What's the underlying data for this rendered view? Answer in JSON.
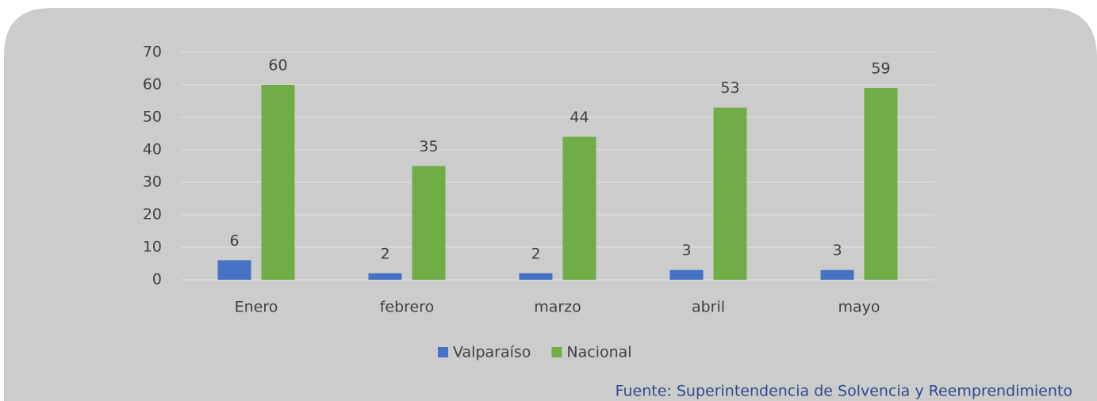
{
  "chart_data": {
    "type": "bar",
    "categories": [
      "Enero",
      "febrero",
      "marzo",
      "abril",
      "mayo"
    ],
    "series": [
      {
        "name": "Valparaíso",
        "color": "#4472c4",
        "values": [
          6,
          2,
          2,
          3,
          3
        ]
      },
      {
        "name": "Nacional",
        "color": "#70ad47",
        "values": [
          60,
          35,
          44,
          53,
          59
        ]
      }
    ],
    "ylim": [
      0,
      70
    ],
    "yticks": [
      0,
      10,
      20,
      30,
      40,
      50,
      60,
      70
    ],
    "grid": true,
    "legend": "bottom",
    "source": "Fuente: Superintendencia de Solvencia y Reemprendimiento"
  }
}
